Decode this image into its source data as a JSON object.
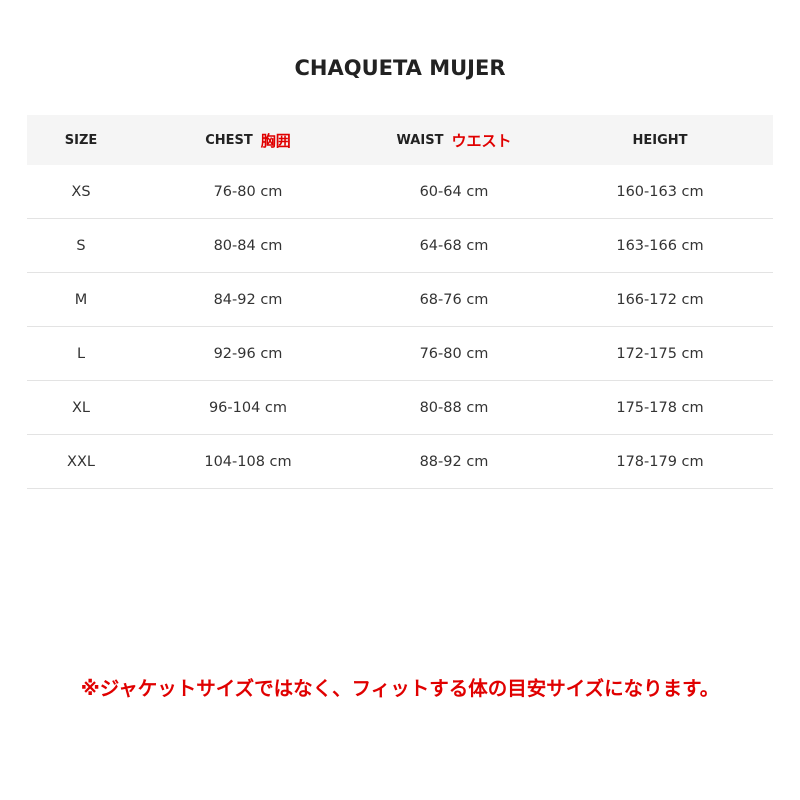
{
  "title": "CHAQUETA MUJER",
  "headers": [
    {
      "label": "SIZE",
      "jp": ""
    },
    {
      "label": "CHEST",
      "jp": "胸囲"
    },
    {
      "label": "WAIST",
      "jp": "ウエスト"
    },
    {
      "label": "HEIGHT",
      "jp": ""
    }
  ],
  "rows": [
    [
      "XS",
      "76-80 cm",
      "60-64 cm",
      "160-163 cm"
    ],
    [
      "S",
      "80-84 cm",
      "64-68 cm",
      "163-166 cm"
    ],
    [
      "M",
      "84-92 cm",
      "68-76 cm",
      "166-172 cm"
    ],
    [
      "L",
      "92-96 cm",
      "76-80 cm",
      "172-175 cm"
    ],
    [
      "XL",
      "96-104 cm",
      "80-88 cm",
      "175-178 cm"
    ],
    [
      "XXL",
      "104-108 cm",
      "88-92 cm",
      "178-179 cm"
    ]
  ],
  "note": "※ジャケットサイズではなく、フィットする体の目安サイズになります。",
  "colors": {
    "accent": "#e00000",
    "header_bg": "#f5f5f5"
  }
}
